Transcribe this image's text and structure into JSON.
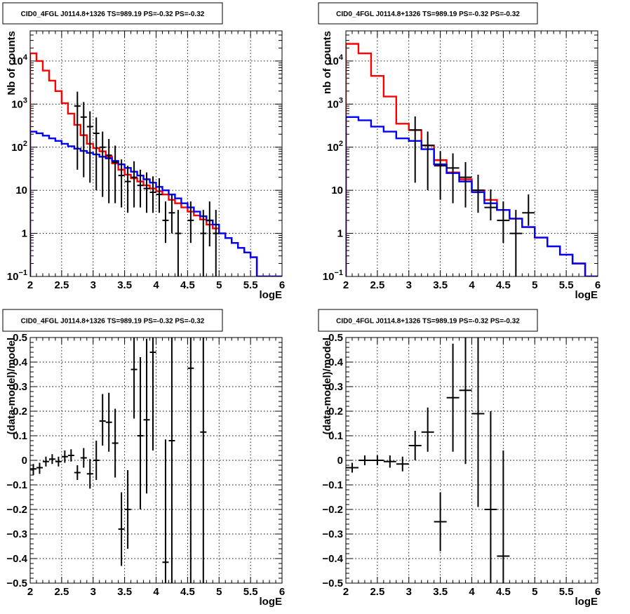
{
  "chart_data": [
    {
      "type": "line",
      "title": "CID0_4FGL J0114.8+1326 TS=989.19 PS=-0.32 PS=-0.32",
      "xlabel": "logE",
      "ylabel": "Nb of counts",
      "log_y": true,
      "xlim": [
        2,
        6
      ],
      "ylim": [
        0.1,
        50000
      ],
      "grid": true,
      "x_ticks": [
        "2",
        "2.5",
        "3",
        "3.5",
        "4",
        "4.5",
        "5",
        "5.5",
        "6"
      ],
      "y_ticks": [
        {
          "v": 0.1,
          "b": "10",
          "e": "−1"
        },
        {
          "v": 1,
          "b": "1",
          "e": ""
        },
        {
          "v": 10,
          "b": "10",
          "e": ""
        },
        {
          "v": 100,
          "b": "10",
          "e": "2"
        },
        {
          "v": 1000,
          "b": "10",
          "e": "3"
        },
        {
          "v": 10000,
          "b": "10",
          "e": "4"
        }
      ],
      "bin_edges": [
        2.0,
        2.1,
        2.2,
        2.3,
        2.4,
        2.5,
        2.6,
        2.7,
        2.8,
        2.9,
        3.0,
        3.1,
        3.2,
        3.3,
        3.4,
        3.5,
        3.6,
        3.7,
        3.8,
        3.9,
        4.0,
        4.1,
        4.2,
        4.3,
        4.4,
        4.5,
        4.6,
        4.7,
        4.8,
        4.9,
        5.0,
        5.1,
        5.2,
        5.3,
        5.4,
        5.5,
        5.6,
        5.7,
        5.8,
        5.9,
        6.0
      ],
      "series": [
        {
          "name": "",
          "color": "#ff0000",
          "style": "step",
          "values": [
            15000,
            10000,
            6000,
            3500,
            2000,
            1050,
            600,
            330,
            190,
            120,
            95,
            80,
            60,
            42,
            30,
            23,
            19,
            16,
            13,
            11,
            9.5,
            8,
            6,
            5,
            4,
            3.2,
            2.6,
            2.1,
            1.6,
            1.3,
            1.0,
            0.78,
            0.6,
            0.46,
            0.36,
            0.28,
            0.1,
            0.1,
            0.1,
            0.1
          ]
        },
        {
          "name": "",
          "color": "#0000ff",
          "style": "step",
          "values": [
            230,
            210,
            185,
            160,
            140,
            120,
            105,
            92,
            82,
            74,
            68,
            60,
            55,
            48,
            40,
            33,
            27,
            22,
            18,
            15,
            12,
            10,
            8,
            6.5,
            5,
            4,
            3.2,
            2.5,
            2.0,
            1.6,
            1.0,
            0.78,
            0.6,
            0.46,
            0.36,
            0.28,
            0.1,
            0.1,
            0.1,
            0.1
          ]
        },
        {
          "name": "",
          "color": "#000000",
          "style": "points",
          "x": [
            2.75,
            2.85,
            2.95,
            3.05,
            3.15,
            3.25,
            3.35,
            3.45,
            3.55,
            3.65,
            3.75,
            3.85,
            3.95,
            4.05,
            4.15,
            4.25,
            4.35,
            4.55,
            4.75,
            4.85,
            4.95
          ],
          "values": [
            900,
            500,
            300,
            210,
            100,
            65,
            45,
            22,
            16,
            20,
            13,
            11,
            9,
            8,
            2,
            3,
            1,
            2,
            1,
            2,
            1
          ],
          "err_lo": [
            870,
            480,
            285,
            200,
            93,
            60,
            40,
            18,
            13,
            16,
            9,
            8,
            6,
            5,
            1.4,
            2,
            1,
            1.4,
            1,
            1.5,
            1
          ],
          "err_hi": [
            1040,
            620,
            380,
            280,
            130,
            90,
            64,
            30,
            21,
            27,
            17,
            15,
            12,
            11,
            3.5,
            5,
            2.5,
            3.5,
            2.5,
            3.5,
            2.5
          ]
        }
      ]
    },
    {
      "type": "line",
      "title": "CID0_4FGL J0114.8+1326 TS=989.19 PS=-0.32 PS=-0.32",
      "xlabel": "logE",
      "ylabel": "nb of counts",
      "log_y": true,
      "xlim": [
        2,
        6
      ],
      "ylim": [
        0.1,
        50000
      ],
      "grid": true,
      "x_ticks": [
        "2",
        "2.5",
        "3",
        "3.5",
        "4",
        "4.5",
        "5",
        "5.5",
        "6"
      ],
      "y_ticks": [
        {
          "v": 0.1,
          "b": "10",
          "e": "−1"
        },
        {
          "v": 1,
          "b": "1",
          "e": ""
        },
        {
          "v": 10,
          "b": "10",
          "e": ""
        },
        {
          "v": 100,
          "b": "10",
          "e": "2"
        },
        {
          "v": 1000,
          "b": "10",
          "e": "3"
        },
        {
          "v": 10000,
          "b": "10",
          "e": "4"
        }
      ],
      "bin_edges": [
        2.0,
        2.2,
        2.4,
        2.6,
        2.8,
        3.0,
        3.2,
        3.4,
        3.6,
        3.8,
        4.0,
        4.2,
        4.4,
        4.6,
        4.8,
        5.0,
        5.2,
        5.4,
        5.6,
        5.8,
        6.0
      ],
      "series": [
        {
          "name": "",
          "color": "#ff0000",
          "style": "step",
          "values": [
            25000,
            15000,
            4500,
            1500,
            350,
            250,
            110,
            50,
            26,
            18,
            10,
            6,
            3.5,
            2.2,
            1.4,
            0.8,
            0.5,
            0.32,
            0.2,
            0.1
          ]
        },
        {
          "name": "",
          "color": "#0000ff",
          "style": "step",
          "values": [
            500,
            420,
            300,
            230,
            160,
            140,
            90,
            40,
            25,
            16,
            9,
            5,
            3.5,
            2.2,
            1.4,
            0.8,
            0.5,
            0.32,
            0.2,
            0.1
          ]
        },
        {
          "name": "",
          "color": "#000000",
          "style": "points",
          "x": [
            3.1,
            3.3,
            3.5,
            3.7,
            3.9,
            4.1,
            4.3,
            4.5,
            4.7,
            4.9
          ],
          "values": [
            250,
            110,
            37,
            33,
            20,
            10,
            4,
            2,
            1,
            3
          ],
          "err_lo": [
            235,
            100,
            31,
            28,
            16,
            7,
            2,
            1.4,
            1,
            1.5
          ],
          "err_hi": [
            265,
            120,
            44,
            39,
            25,
            13,
            6.5,
            3.5,
            2.5,
            5
          ]
        }
      ]
    },
    {
      "type": "scatter",
      "title": "CID0_4FGL J0114.8+1326 TS=989.19 PS=-0.32 PS=-0.32",
      "xlabel": "logE",
      "ylabel": "(data-model)/model",
      "log_y": false,
      "xlim": [
        2,
        6
      ],
      "ylim": [
        -0.5,
        0.5
      ],
      "grid": true,
      "x_ticks": [
        "2",
        "2.5",
        "3",
        "3.5",
        "4",
        "4.5",
        "5",
        "5.5",
        "6"
      ],
      "y_ticks": [
        {
          "v": -0.5,
          "b": "−0.5",
          "e": ""
        },
        {
          "v": -0.4,
          "b": "−0.4",
          "e": ""
        },
        {
          "v": -0.3,
          "b": "−0.3",
          "e": ""
        },
        {
          "v": -0.2,
          "b": "−0.2",
          "e": ""
        },
        {
          "v": -0.1,
          "b": "−0.1",
          "e": ""
        },
        {
          "v": 0,
          "b": "0",
          "e": ""
        },
        {
          "v": 0.1,
          "b": "0.1",
          "e": ""
        },
        {
          "v": 0.2,
          "b": "0.2",
          "e": ""
        },
        {
          "v": 0.3,
          "b": "0.3",
          "e": ""
        },
        {
          "v": 0.4,
          "b": "0.4",
          "e": ""
        },
        {
          "v": 0.5,
          "b": "0.5",
          "e": ""
        }
      ],
      "series": [
        {
          "name": "",
          "color": "#000000",
          "style": "points",
          "xerr": 0.05,
          "x": [
            2.05,
            2.15,
            2.25,
            2.35,
            2.45,
            2.55,
            2.65,
            2.75,
            2.85,
            2.95,
            3.05,
            3.15,
            3.25,
            3.35,
            3.45,
            3.55,
            3.65,
            3.75,
            3.85,
            3.95,
            4.15,
            4.25,
            4.55,
            4.75
          ],
          "values": [
            -0.035,
            -0.03,
            -0.005,
            0.005,
            -0.005,
            0.015,
            0.02,
            -0.05,
            0.01,
            -0.055,
            0.0,
            0.16,
            0.155,
            0.07,
            -0.28,
            -0.2,
            0.37,
            0.1,
            0.165,
            0.44,
            -0.415,
            0.08,
            0.375,
            0.115
          ],
          "err_lo": [
            0.025,
            0.025,
            0.02,
            0.02,
            0.02,
            0.025,
            0.025,
            0.03,
            0.04,
            0.06,
            0.08,
            0.1,
            0.12,
            0.14,
            0.15,
            0.16,
            0.2,
            0.3,
            0.3,
            0.4,
            0.5,
            0.6,
            1.0,
            1.0
          ],
          "err_hi": [
            0.02,
            0.02,
            0.02,
            0.02,
            0.02,
            0.025,
            0.025,
            0.03,
            0.04,
            0.06,
            0.08,
            0.11,
            0.12,
            0.14,
            0.15,
            0.16,
            0.2,
            0.32,
            0.33,
            0.4,
            0.5,
            0.6,
            1.0,
            1.0
          ]
        }
      ]
    },
    {
      "type": "scatter",
      "title": "CID0_4FGL J0114.8+1326 TS=989.19 PS=-0.32 PS=-0.32",
      "xlabel": "logE",
      "ylabel": "(data-model)/model",
      "log_y": false,
      "xlim": [
        2,
        6
      ],
      "ylim": [
        -0.5,
        0.5
      ],
      "grid": true,
      "x_ticks": [
        "2",
        "2.5",
        "3",
        "3.5",
        "4",
        "4.5",
        "5",
        "5.5",
        "6"
      ],
      "y_ticks": [
        {
          "v": -0.5,
          "b": "−0.5",
          "e": ""
        },
        {
          "v": -0.4,
          "b": "−0.4",
          "e": ""
        },
        {
          "v": -0.3,
          "b": "−0.3",
          "e": ""
        },
        {
          "v": -0.2,
          "b": "−0.2",
          "e": ""
        },
        {
          "v": -0.1,
          "b": "−0.1",
          "e": ""
        },
        {
          "v": 0,
          "b": "0",
          "e": ""
        },
        {
          "v": 0.1,
          "b": "0.1",
          "e": ""
        },
        {
          "v": 0.2,
          "b": "0.2",
          "e": ""
        },
        {
          "v": 0.3,
          "b": "0.3",
          "e": ""
        },
        {
          "v": 0.4,
          "b": "0.4",
          "e": ""
        },
        {
          "v": 0.5,
          "b": "0.5",
          "e": ""
        }
      ],
      "series": [
        {
          "name": "",
          "color": "#000000",
          "style": "points",
          "xerr": 0.1,
          "x": [
            2.1,
            2.3,
            2.5,
            2.7,
            2.9,
            3.1,
            3.3,
            3.5,
            3.7,
            3.9,
            4.1,
            4.3,
            4.5
          ],
          "values": [
            -0.03,
            0.0,
            0.0,
            -0.005,
            -0.015,
            0.06,
            0.115,
            -0.25,
            0.255,
            0.285,
            0.19,
            -0.2,
            -0.39
          ],
          "err_lo": [
            0.02,
            0.02,
            0.02,
            0.025,
            0.03,
            0.06,
            0.08,
            0.12,
            0.22,
            0.3,
            0.38,
            0.5,
            0.6
          ],
          "err_hi": [
            0.02,
            0.02,
            0.02,
            0.025,
            0.03,
            0.06,
            0.1,
            0.12,
            0.22,
            0.3,
            0.38,
            0.4,
            0.43
          ]
        }
      ]
    }
  ]
}
